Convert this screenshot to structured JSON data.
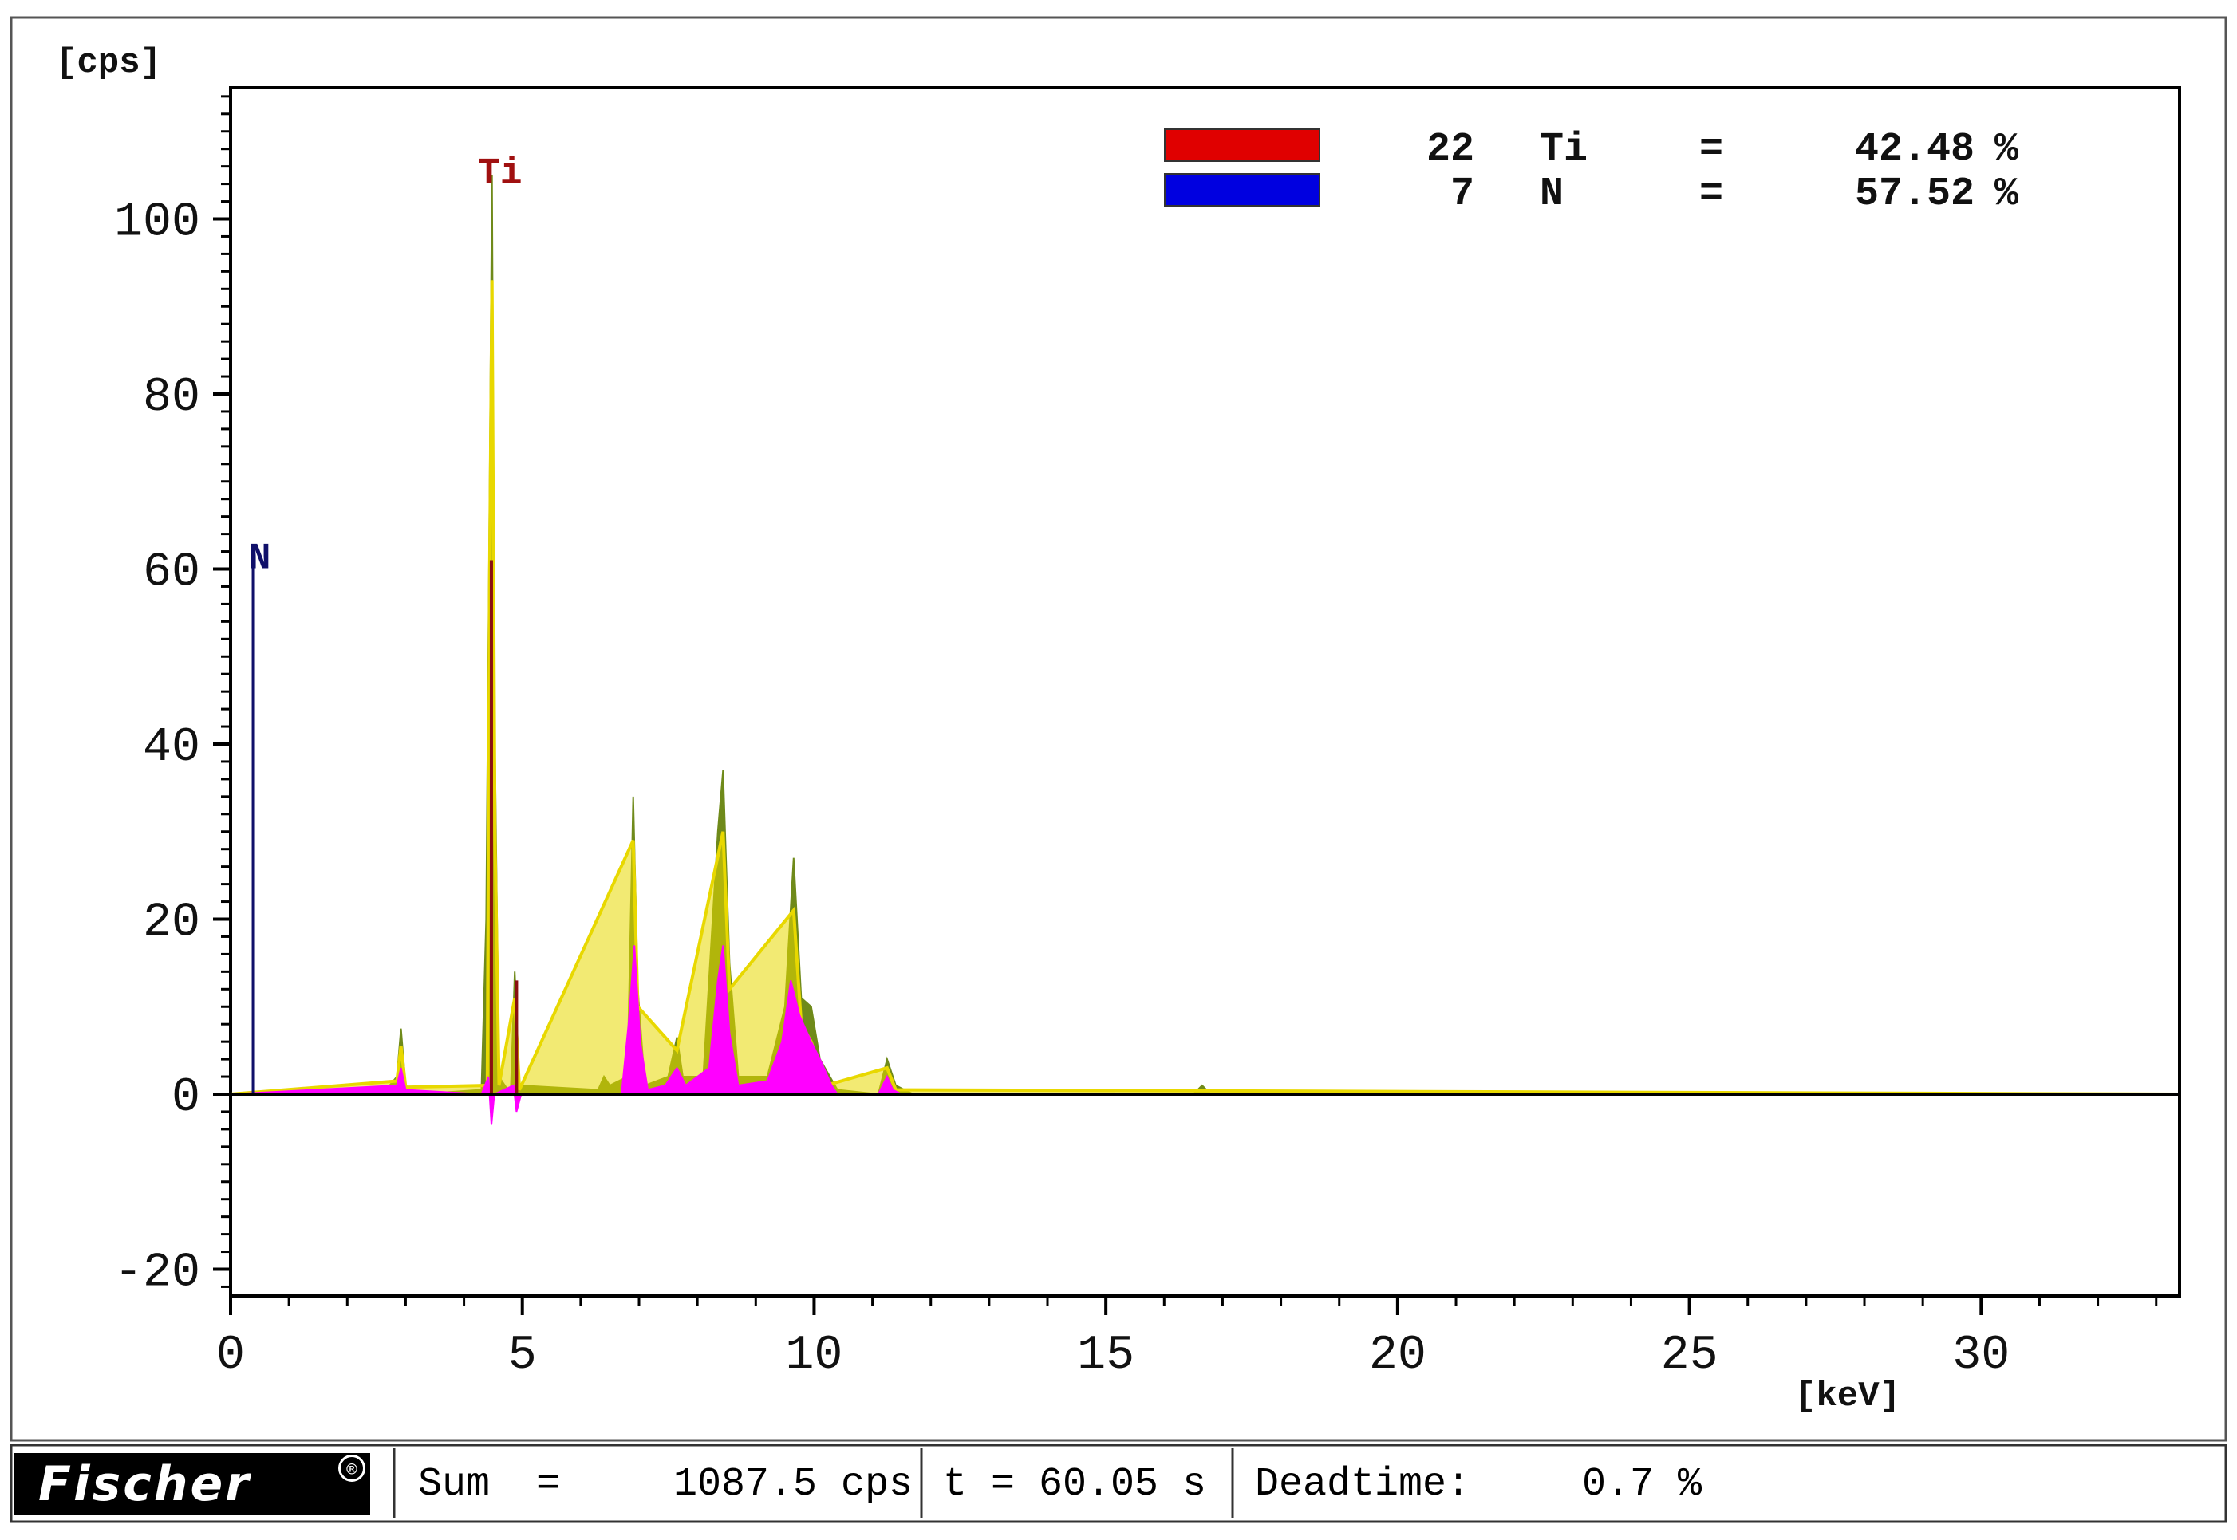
{
  "chart_data": {
    "type": "line",
    "ylabel": "[cps]",
    "xlabel": "[keV]",
    "xlim": [
      0,
      33.4
    ],
    "ylim": [
      -23,
      116
    ],
    "x_ticks": [
      "0",
      "5",
      "10",
      "15",
      "20",
      "25",
      "30"
    ],
    "y_ticks": [
      "-20",
      "0",
      "20",
      "40",
      "60",
      "80",
      "100"
    ],
    "grid": false,
    "legend_position": "top-right",
    "composition": [
      {
        "z": "22",
        "element": "Ti",
        "eq": "=",
        "value": "42.48",
        "unit": "%",
        "color": "#e00000"
      },
      {
        "z": "7",
        "element": "N",
        "eq": "=",
        "value": "57.52",
        "unit": "%",
        "color": "#0000e0"
      }
    ],
    "peak_labels": [
      {
        "text": "Ti",
        "x": 4.51,
        "y": 105,
        "color": "#a01010"
      },
      {
        "text": "N",
        "x": 0.39,
        "y": 61,
        "color": "#10106a"
      }
    ],
    "series": [
      {
        "name": "measured spectrum",
        "color": "#6f8a1a",
        "points": [
          [
            0,
            0
          ],
          [
            2.6,
            0
          ],
          [
            2.85,
            2
          ],
          [
            2.92,
            7.5
          ],
          [
            3.0,
            1
          ],
          [
            3.2,
            0
          ],
          [
            4.3,
            0.5
          ],
          [
            4.38,
            20
          ],
          [
            4.44,
            70
          ],
          [
            4.48,
            105
          ],
          [
            4.53,
            40
          ],
          [
            4.6,
            2
          ],
          [
            4.8,
            0
          ],
          [
            4.87,
            14
          ],
          [
            4.95,
            1
          ],
          [
            6.3,
            0.5
          ],
          [
            6.4,
            2
          ],
          [
            6.5,
            1
          ],
          [
            6.8,
            2
          ],
          [
            6.9,
            34
          ],
          [
            6.98,
            12
          ],
          [
            7.1,
            1
          ],
          [
            7.5,
            2
          ],
          [
            7.65,
            6.5
          ],
          [
            7.75,
            2
          ],
          [
            8.1,
            2
          ],
          [
            8.35,
            30
          ],
          [
            8.44,
            37
          ],
          [
            8.55,
            15
          ],
          [
            8.7,
            2
          ],
          [
            9.2,
            2
          ],
          [
            9.5,
            10
          ],
          [
            9.65,
            27
          ],
          [
            9.78,
            11
          ],
          [
            9.95,
            10
          ],
          [
            10.1,
            4
          ],
          [
            10.4,
            0.5
          ],
          [
            11.1,
            0
          ],
          [
            11.25,
            4
          ],
          [
            11.4,
            1
          ],
          [
            11.7,
            0
          ],
          [
            16.5,
            0
          ],
          [
            16.65,
            1
          ],
          [
            16.8,
            0
          ],
          [
            33.4,
            0
          ]
        ]
      },
      {
        "name": "fit",
        "color": "#e8d800",
        "points": [
          [
            0,
            0
          ],
          [
            2.85,
            1.5
          ],
          [
            2.92,
            5.5
          ],
          [
            3.0,
            0.8
          ],
          [
            4.4,
            1
          ],
          [
            4.44,
            60
          ],
          [
            4.48,
            93
          ],
          [
            4.53,
            30
          ],
          [
            4.6,
            1
          ],
          [
            4.87,
            11
          ],
          [
            4.95,
            0.5
          ],
          [
            6.9,
            29
          ],
          [
            6.98,
            10
          ],
          [
            7.65,
            5
          ],
          [
            8.44,
            30
          ],
          [
            8.55,
            12
          ],
          [
            9.65,
            21
          ],
          [
            9.78,
            8
          ],
          [
            9.95,
            6
          ],
          [
            10.2,
            1
          ],
          [
            11.25,
            3
          ],
          [
            11.4,
            0.5
          ],
          [
            33.4,
            0
          ]
        ]
      },
      {
        "name": "Ti fill",
        "color": "#ff00ff",
        "points": [
          [
            0,
            0
          ],
          [
            2.85,
            1
          ],
          [
            2.92,
            3
          ],
          [
            3.0,
            0.5
          ],
          [
            4.3,
            0
          ],
          [
            4.42,
            2
          ],
          [
            4.47,
            -3.5
          ],
          [
            4.52,
            0
          ],
          [
            4.85,
            1
          ],
          [
            4.9,
            -2
          ],
          [
            4.98,
            0
          ],
          [
            6.7,
            0
          ],
          [
            6.82,
            8
          ],
          [
            6.92,
            17
          ],
          [
            7.02,
            6
          ],
          [
            7.15,
            0.5
          ],
          [
            7.45,
            1
          ],
          [
            7.65,
            3
          ],
          [
            7.8,
            1
          ],
          [
            8.2,
            3
          ],
          [
            8.35,
            13
          ],
          [
            8.44,
            17
          ],
          [
            8.55,
            7
          ],
          [
            8.7,
            1
          ],
          [
            9.2,
            1.5
          ],
          [
            9.45,
            6
          ],
          [
            9.6,
            13
          ],
          [
            9.75,
            9
          ],
          [
            9.95,
            6
          ],
          [
            10.1,
            4
          ],
          [
            10.3,
            1
          ],
          [
            10.4,
            0
          ],
          [
            11.1,
            0
          ],
          [
            11.25,
            2
          ],
          [
            11.35,
            0.5
          ],
          [
            11.5,
            0
          ],
          [
            33.4,
            0
          ]
        ]
      },
      {
        "name": "Ti marker",
        "color": "#8a1010",
        "points": [
          [
            4.47,
            0
          ],
          [
            4.47,
            61
          ]
        ]
      },
      {
        "name": "Ti marker 2",
        "color": "#8a1010",
        "points": [
          [
            4.9,
            0
          ],
          [
            4.9,
            13
          ]
        ]
      },
      {
        "name": "N marker",
        "color": "#10106a",
        "points": [
          [
            0.39,
            0
          ],
          [
            0.39,
            61
          ]
        ]
      }
    ]
  },
  "status_bar": {
    "logo": "Fischer",
    "sum_label": "Sum",
    "sum_eq": "=",
    "sum_value": "1087.5 cps",
    "time": "t = 60.05 s",
    "deadtime_label": "Deadtime:",
    "deadtime_value": "0.7 %"
  }
}
